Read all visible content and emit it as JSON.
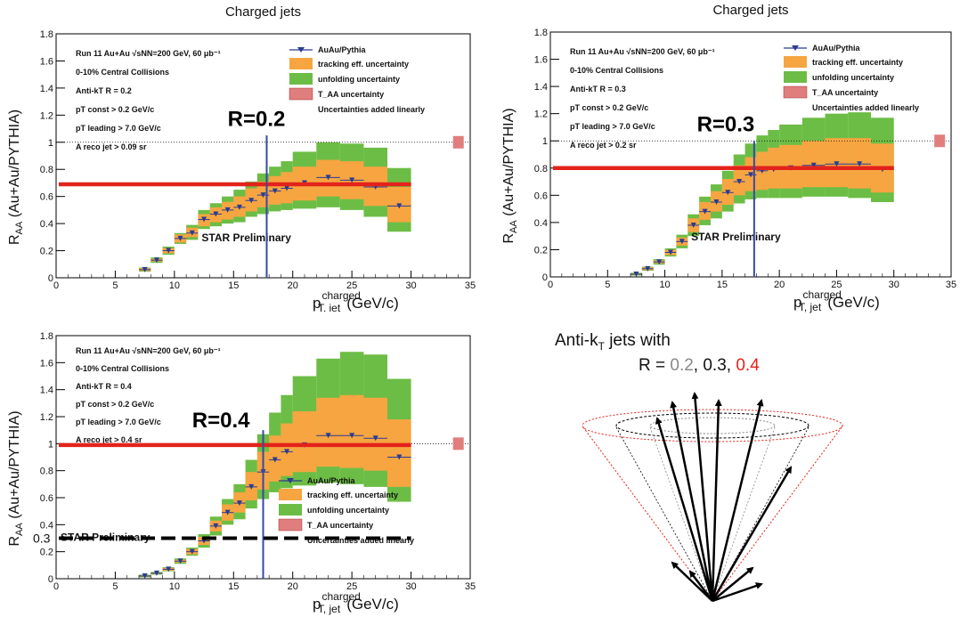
{
  "colors": {
    "series": "#2b3b8f",
    "tracking": "#f7a541",
    "unfolding": "#6cbd45",
    "taa": "#e07e7e",
    "ref_line_red": "#e3231b",
    "vline": "#3848a8",
    "dashed": "#000000",
    "cone_red": "#e3231b",
    "r02_text": "#888888",
    "r04_text": "#e3231b"
  },
  "chart_data": [
    {
      "id": "r02",
      "type": "scatter",
      "title": "Charged jets",
      "xlabel": "charged",
      "xlabel_sub": "T, jet",
      "xlabel_unit": "(GeV/c)",
      "ylabel": "R",
      "ylabel_sub": "AA",
      "ylabel_rest": " (Au+Au/PYTHIA)",
      "xlim": [
        0,
        35
      ],
      "ylim": [
        0,
        1.8
      ],
      "xticks": [
        0,
        5,
        10,
        15,
        20,
        25,
        30,
        35
      ],
      "yticks": [
        0,
        0.2,
        0.4,
        0.6,
        0.8,
        1,
        1.2,
        1.4,
        1.6,
        1.8
      ],
      "legend_pos": "top-right",
      "legend": [
        "AuAu/Pythia",
        "tracking eff. uncertainty",
        "unfolding uncertainty",
        "T_AA uncertainty",
        "Uncertainties added linearly"
      ],
      "info": [
        "Run 11 Au+Au √sNN=200 GeV, 60 μb⁻¹",
        "0-10% Central Collisions",
        "Anti-kT  R = 0.2",
        "pT const > 0.2 GeV/c",
        "pT leading > 7.0 GeV/c",
        "A reco jet > 0.09 sr"
      ],
      "label_big": "R=0.2",
      "watermark": "STAR Preliminary",
      "red_line_y": 0.69,
      "vline_x": 17.8,
      "taa_box": {
        "x": 34,
        "y": 1.0
      },
      "bins": [
        {
          "lo": 7,
          "hi": 8,
          "y": 0.06,
          "tl": 0.05,
          "th": 0.07,
          "ul": 0.045,
          "uh": 0.075
        },
        {
          "lo": 8,
          "hi": 9,
          "y": 0.13,
          "tl": 0.12,
          "th": 0.14,
          "ul": 0.11,
          "uh": 0.15
        },
        {
          "lo": 9,
          "hi": 10,
          "y": 0.2,
          "tl": 0.18,
          "th": 0.22,
          "ul": 0.17,
          "uh": 0.23
        },
        {
          "lo": 10,
          "hi": 11,
          "y": 0.29,
          "tl": 0.26,
          "th": 0.32,
          "ul": 0.25,
          "uh": 0.33
        },
        {
          "lo": 11,
          "hi": 12,
          "y": 0.33,
          "tl": 0.3,
          "th": 0.37,
          "ul": 0.28,
          "uh": 0.39
        },
        {
          "lo": 12,
          "hi": 13,
          "y": 0.43,
          "tl": 0.38,
          "th": 0.47,
          "ul": 0.36,
          "uh": 0.5
        },
        {
          "lo": 13,
          "hi": 14,
          "y": 0.47,
          "tl": 0.41,
          "th": 0.52,
          "ul": 0.38,
          "uh": 0.55
        },
        {
          "lo": 14,
          "hi": 15,
          "y": 0.5,
          "tl": 0.43,
          "th": 0.56,
          "ul": 0.4,
          "uh": 0.6
        },
        {
          "lo": 15,
          "hi": 16,
          "y": 0.52,
          "tl": 0.45,
          "th": 0.6,
          "ul": 0.41,
          "uh": 0.65
        },
        {
          "lo": 16,
          "hi": 17,
          "y": 0.57,
          "tl": 0.49,
          "th": 0.66,
          "ul": 0.45,
          "uh": 0.71
        },
        {
          "lo": 17,
          "hi": 18,
          "y": 0.61,
          "tl": 0.52,
          "th": 0.71,
          "ul": 0.47,
          "uh": 0.77
        },
        {
          "lo": 18,
          "hi": 19,
          "y": 0.64,
          "tl": 0.54,
          "th": 0.75,
          "ul": 0.49,
          "uh": 0.82
        },
        {
          "lo": 19,
          "hi": 20,
          "y": 0.66,
          "tl": 0.55,
          "th": 0.78,
          "ul": 0.5,
          "uh": 0.86
        },
        {
          "lo": 20,
          "hi": 22,
          "y": 0.7,
          "tl": 0.57,
          "th": 0.82,
          "ul": 0.51,
          "uh": 0.93
        },
        {
          "lo": 22,
          "hi": 24,
          "y": 0.74,
          "tl": 0.6,
          "th": 0.87,
          "ul": 0.52,
          "uh": 1.0
        },
        {
          "lo": 24,
          "hi": 26,
          "y": 0.72,
          "tl": 0.58,
          "th": 0.86,
          "ul": 0.5,
          "uh": 0.99
        },
        {
          "lo": 26,
          "hi": 28,
          "y": 0.67,
          "tl": 0.53,
          "th": 0.82,
          "ul": 0.45,
          "uh": 0.96
        },
        {
          "lo": 28,
          "hi": 30,
          "y": 0.53,
          "tl": 0.41,
          "th": 0.67,
          "ul": 0.34,
          "uh": 0.81
        }
      ]
    },
    {
      "id": "r03",
      "type": "scatter",
      "title": "Charged jets",
      "xlabel": "charged",
      "xlabel_sub": "T, jet",
      "xlabel_unit": "(GeV/c)",
      "ylabel": "R",
      "ylabel_sub": "AA",
      "ylabel_rest": " (Au+Au/PYTHIA)",
      "xlim": [
        0,
        35
      ],
      "ylim": [
        0,
        1.8
      ],
      "xticks": [
        0,
        5,
        10,
        15,
        20,
        25,
        30,
        35
      ],
      "yticks": [
        0,
        0.2,
        0.4,
        0.6,
        0.8,
        1,
        1.2,
        1.4,
        1.6,
        1.8
      ],
      "legend_pos": "top-right",
      "legend": [
        "AuAu/Pythia",
        "tracking eff. uncertainty",
        "unfolding uncertainty",
        "T_AA uncertainty",
        "Uncertainties added linearly"
      ],
      "info": [
        "Run 11 Au+Au √sNN=200 GeV, 60 μb⁻¹",
        "0-10% Central Collisions",
        "Anti-kT  R = 0.3",
        "pT const > 0.2 GeV/c",
        "pT leading > 7.0 GeV/c",
        "A reco jet > 0.2 sr"
      ],
      "label_big": "R=0.3",
      "watermark": "STAR Preliminary",
      "red_line_y": 0.8,
      "vline_x": 17.8,
      "taa_box": {
        "x": 34,
        "y": 1.0
      },
      "bins": [
        {
          "lo": 7,
          "hi": 8,
          "y": 0.02,
          "tl": 0.015,
          "th": 0.025,
          "ul": 0.01,
          "uh": 0.03
        },
        {
          "lo": 8,
          "hi": 9,
          "y": 0.06,
          "tl": 0.05,
          "th": 0.07,
          "ul": 0.045,
          "uh": 0.075
        },
        {
          "lo": 9,
          "hi": 10,
          "y": 0.11,
          "tl": 0.1,
          "th": 0.12,
          "ul": 0.09,
          "uh": 0.13
        },
        {
          "lo": 10,
          "hi": 11,
          "y": 0.18,
          "tl": 0.16,
          "th": 0.2,
          "ul": 0.15,
          "uh": 0.21
        },
        {
          "lo": 11,
          "hi": 12,
          "y": 0.26,
          "tl": 0.23,
          "th": 0.29,
          "ul": 0.21,
          "uh": 0.31
        },
        {
          "lo": 12,
          "hi": 13,
          "y": 0.38,
          "tl": 0.33,
          "th": 0.43,
          "ul": 0.3,
          "uh": 0.46
        },
        {
          "lo": 13,
          "hi": 14,
          "y": 0.48,
          "tl": 0.42,
          "th": 0.55,
          "ul": 0.38,
          "uh": 0.59
        },
        {
          "lo": 14,
          "hi": 15,
          "y": 0.55,
          "tl": 0.48,
          "th": 0.63,
          "ul": 0.43,
          "uh": 0.68
        },
        {
          "lo": 15,
          "hi": 16,
          "y": 0.62,
          "tl": 0.53,
          "th": 0.72,
          "ul": 0.48,
          "uh": 0.78
        },
        {
          "lo": 16,
          "hi": 17,
          "y": 0.7,
          "tl": 0.6,
          "th": 0.82,
          "ul": 0.54,
          "uh": 0.9
        },
        {
          "lo": 17,
          "hi": 18,
          "y": 0.75,
          "tl": 0.63,
          "th": 0.88,
          "ul": 0.57,
          "uh": 0.98
        },
        {
          "lo": 18,
          "hi": 19,
          "y": 0.78,
          "tl": 0.64,
          "th": 0.92,
          "ul": 0.58,
          "uh": 1.04
        },
        {
          "lo": 19,
          "hi": 20,
          "y": 0.79,
          "tl": 0.65,
          "th": 0.95,
          "ul": 0.58,
          "uh": 1.08
        },
        {
          "lo": 20,
          "hi": 22,
          "y": 0.8,
          "tl": 0.65,
          "th": 0.97,
          "ul": 0.58,
          "uh": 1.12
        },
        {
          "lo": 22,
          "hi": 24,
          "y": 0.82,
          "tl": 0.66,
          "th": 1.0,
          "ul": 0.59,
          "uh": 1.17
        },
        {
          "lo": 24,
          "hi": 26,
          "y": 0.83,
          "tl": 0.66,
          "th": 1.02,
          "ul": 0.59,
          "uh": 1.2
        },
        {
          "lo": 26,
          "hi": 28,
          "y": 0.83,
          "tl": 0.65,
          "th": 1.02,
          "ul": 0.58,
          "uh": 1.21
        },
        {
          "lo": 28,
          "hi": 30,
          "y": 0.79,
          "tl": 0.62,
          "th": 0.98,
          "ul": 0.55,
          "uh": 1.17
        }
      ]
    },
    {
      "id": "r04",
      "type": "scatter",
      "title": "",
      "xlabel": "charged",
      "xlabel_sub": "T, jet",
      "xlabel_unit": "(GeV/c)",
      "ylabel": "R",
      "ylabel_sub": "AA",
      "ylabel_rest": " (Au+Au/PYTHIA)",
      "xlim": [
        0,
        35
      ],
      "ylim": [
        0,
        1.8
      ],
      "xticks": [
        0,
        5,
        10,
        15,
        20,
        25,
        30,
        35
      ],
      "yticks": [
        0,
        0.2,
        0.4,
        0.6,
        0.8,
        1,
        1.2,
        1.4,
        1.6,
        1.8
      ],
      "legend_pos": "bottom-right",
      "legend": [
        "AuAu/Pythia",
        "tracking eff. uncertainty",
        "unfolding uncertainty",
        "T_AA uncertainty",
        "Uncertainties added linearly"
      ],
      "info": [
        "Run 11 Au+Au √sNN=200 GeV, 60 μb⁻¹",
        "0-10% Central Collisions",
        "Anti-kT  R = 0.4",
        "pT const > 0.2 GeV/c",
        "pT leading > 7.0 GeV/c",
        "A reco jet > 0.4 sr"
      ],
      "label_big": "R=0.4",
      "watermark": "STAR Preliminary",
      "red_line_y": 0.99,
      "vline_x": 17.5,
      "dashed_line_y": 0.3,
      "dashed_label": "0.3",
      "taa_box": {
        "x": 34,
        "y": 1.0
      },
      "bins": [
        {
          "lo": 7,
          "hi": 8,
          "y": 0.02,
          "tl": 0.015,
          "th": 0.025,
          "ul": 0.01,
          "uh": 0.03
        },
        {
          "lo": 8,
          "hi": 9,
          "y": 0.04,
          "tl": 0.035,
          "th": 0.045,
          "ul": 0.03,
          "uh": 0.05
        },
        {
          "lo": 9,
          "hi": 10,
          "y": 0.07,
          "tl": 0.06,
          "th": 0.08,
          "ul": 0.055,
          "uh": 0.085
        },
        {
          "lo": 10,
          "hi": 11,
          "y": 0.13,
          "tl": 0.12,
          "th": 0.14,
          "ul": 0.11,
          "uh": 0.15
        },
        {
          "lo": 11,
          "hi": 12,
          "y": 0.2,
          "tl": 0.18,
          "th": 0.22,
          "ul": 0.17,
          "uh": 0.23
        },
        {
          "lo": 12,
          "hi": 13,
          "y": 0.28,
          "tl": 0.25,
          "th": 0.31,
          "ul": 0.23,
          "uh": 0.33
        },
        {
          "lo": 13,
          "hi": 14,
          "y": 0.39,
          "tl": 0.35,
          "th": 0.43,
          "ul": 0.32,
          "uh": 0.46
        },
        {
          "lo": 14,
          "hi": 15,
          "y": 0.49,
          "tl": 0.43,
          "th": 0.55,
          "ul": 0.4,
          "uh": 0.59
        },
        {
          "lo": 15,
          "hi": 16,
          "y": 0.56,
          "tl": 0.49,
          "th": 0.64,
          "ul": 0.44,
          "uh": 0.7
        },
        {
          "lo": 16,
          "hi": 17,
          "y": 0.68,
          "tl": 0.58,
          "th": 0.79,
          "ul": 0.52,
          "uh": 0.88
        },
        {
          "lo": 17,
          "hi": 18,
          "y": 0.79,
          "tl": 0.66,
          "th": 0.94,
          "ul": 0.59,
          "uh": 1.07
        },
        {
          "lo": 18,
          "hi": 19,
          "y": 0.88,
          "tl": 0.72,
          "th": 1.06,
          "ul": 0.64,
          "uh": 1.23
        },
        {
          "lo": 19,
          "hi": 20,
          "y": 0.94,
          "tl": 0.76,
          "th": 1.15,
          "ul": 0.67,
          "uh": 1.36
        },
        {
          "lo": 20,
          "hi": 22,
          "y": 0.99,
          "tl": 0.79,
          "th": 1.24,
          "ul": 0.69,
          "uh": 1.5
        },
        {
          "lo": 22,
          "hi": 24,
          "y": 1.06,
          "tl": 0.83,
          "th": 1.34,
          "ul": 0.71,
          "uh": 1.63
        },
        {
          "lo": 24,
          "hi": 26,
          "y": 1.06,
          "tl": 0.82,
          "th": 1.36,
          "ul": 0.7,
          "uh": 1.68
        },
        {
          "lo": 26,
          "hi": 28,
          "y": 1.04,
          "tl": 0.8,
          "th": 1.34,
          "ul": 0.68,
          "uh": 1.66
        },
        {
          "lo": 28,
          "hi": 30,
          "y": 0.9,
          "tl": 0.68,
          "th": 1.18,
          "ul": 0.57,
          "uh": 1.48
        }
      ]
    }
  ],
  "diagram": {
    "title_prefix": "Anti-k",
    "title_sub": "T",
    "title_suffix": " jets with",
    "r_prefix": "R = ",
    "r_values": [
      "0.2",
      "0.3",
      "0.4"
    ],
    "r_sep": ", "
  }
}
